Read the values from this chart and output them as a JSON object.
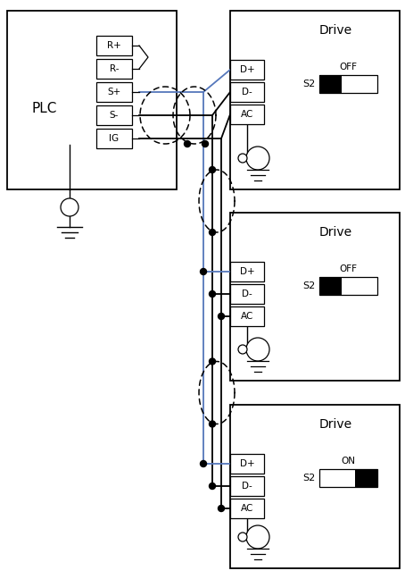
{
  "bg": "#ffffff",
  "lc": "#000000",
  "bc": "#5577bb",
  "plc_label": "PLC",
  "drive_label": "Drive",
  "plc_terms": [
    "R+",
    "R-",
    "S+",
    "S-",
    "IG"
  ],
  "drive_terms": [
    "D+",
    "D-",
    "AC"
  ],
  "s2_states": [
    "OFF",
    "OFF",
    "ON"
  ],
  "figw": 4.54,
  "figh": 6.48
}
